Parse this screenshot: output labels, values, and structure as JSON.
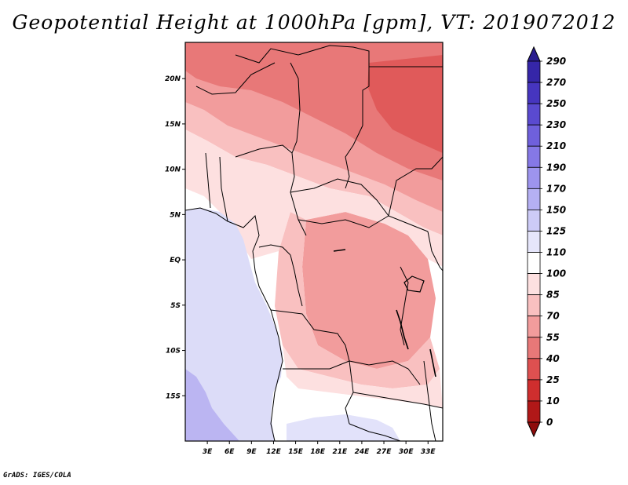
{
  "title": "Geopotential Height at 1000hPa [gpm], VT: 2019072012",
  "credit": "GrADS: IGES/COLA",
  "map": {
    "lon_range": [
      0,
      35
    ],
    "lat_range": [
      -20,
      24
    ],
    "x_ticks": [
      "3E",
      "6E",
      "9E",
      "12E",
      "15E",
      "18E",
      "21E",
      "24E",
      "27E",
      "30E",
      "33E"
    ],
    "x_tick_values": [
      3,
      6,
      9,
      12,
      15,
      18,
      21,
      24,
      27,
      30,
      33
    ],
    "y_ticks": [
      "20N",
      "15N",
      "10N",
      "5N",
      "EQ",
      "5S",
      "10S",
      "15S"
    ],
    "y_tick_values": [
      20,
      15,
      10,
      5,
      0,
      -5,
      -10,
      -15
    ]
  },
  "colorbar": {
    "labels": [
      "290",
      "270",
      "250",
      "230",
      "210",
      "190",
      "170",
      "150",
      "125",
      "110",
      "100",
      "85",
      "70",
      "55",
      "40",
      "25",
      "10",
      "0"
    ],
    "colors": [
      "#2a1d8f",
      "#3526a8",
      "#4635bf",
      "#5a4ad0",
      "#6f60dc",
      "#8578e6",
      "#9d94ee",
      "#b5b0f3",
      "#cdcbf7",
      "#e6e6fb",
      "#ffffff",
      "#fde0e0",
      "#f9c0c0",
      "#f29c9c",
      "#e87878",
      "#de5050",
      "#cf2e2e",
      "#b01818",
      "#8e0c0c"
    ]
  }
}
